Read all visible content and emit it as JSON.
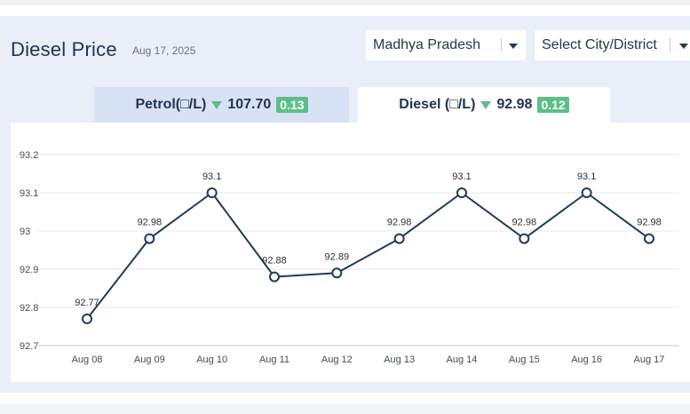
{
  "header": {
    "title": "Diesel Price",
    "date": "Aug 17, 2025"
  },
  "filters": {
    "state_value": "Madhya Pradesh",
    "city_placeholder": "Select City/District"
  },
  "tabs": [
    {
      "label": "Petrol(□/L)",
      "price": "107.70",
      "change": "0.13",
      "trend": "down"
    },
    {
      "label": "Diesel (□/L)",
      "price": "92.98",
      "change": "0.12",
      "trend": "down"
    }
  ],
  "colors": {
    "line": "#1f3a5f",
    "change_badge": "#5cbf88",
    "background": "#e9eef9",
    "active_tab": "#ffffff",
    "inactive_tab": "#d8e2f5"
  },
  "chart_data": {
    "type": "line",
    "categories": [
      "Aug 08",
      "Aug 09",
      "Aug 10",
      "Aug 11",
      "Aug 12",
      "Aug 13",
      "Aug 14",
      "Aug 15",
      "Aug 16",
      "Aug 17"
    ],
    "values": [
      92.77,
      92.98,
      93.1,
      92.88,
      92.89,
      92.98,
      93.1,
      92.98,
      93.1,
      92.98
    ],
    "data_labels": [
      "92.77",
      "92.98",
      "93.1",
      "92.88",
      "92.89",
      "92.98",
      "93.1",
      "92.98",
      "93.1",
      "92.98"
    ],
    "yticks": [
      "92.7",
      "92.8",
      "92.9",
      "93",
      "93.1",
      "93.2"
    ],
    "ylim": [
      92.7,
      93.2
    ],
    "grid": true,
    "title": "",
    "xlabel": "",
    "ylabel": ""
  }
}
